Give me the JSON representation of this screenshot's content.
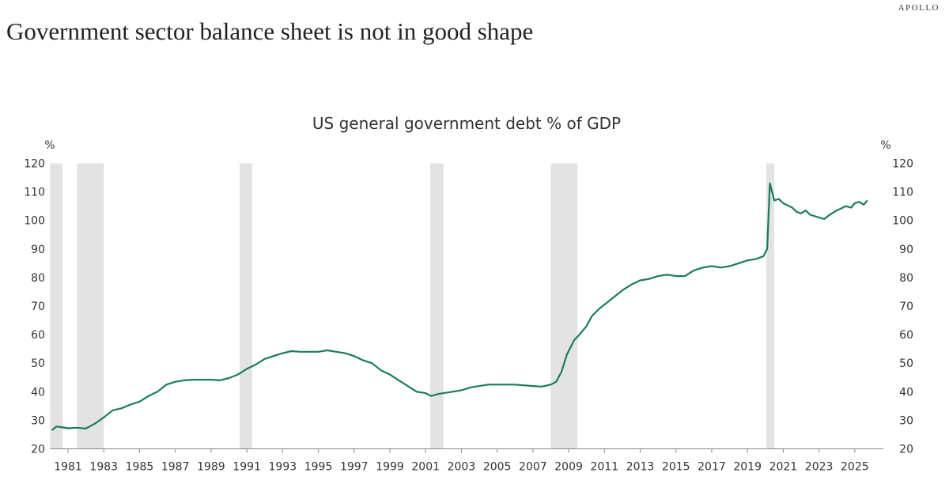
{
  "headline": "Government sector balance sheet is not in good shape",
  "brand": "APOLLO",
  "colors": {
    "line": "#1a7a60",
    "recession": "#e3e3e3",
    "axis": "#888888"
  },
  "chart_data": {
    "type": "line",
    "title": "US general government debt % of GDP",
    "ylabel_left": "%",
    "ylabel_right": "%",
    "ylim": [
      20,
      120
    ],
    "yticks": [
      20,
      30,
      40,
      50,
      60,
      70,
      80,
      90,
      100,
      110,
      120
    ],
    "xlim": [
      1980,
      2026.6
    ],
    "xticks": [
      "1981",
      "1983",
      "1985",
      "1987",
      "1989",
      "1991",
      "1993",
      "1995",
      "1997",
      "1999",
      "2001",
      "2003",
      "2005",
      "2007",
      "2009",
      "2011",
      "2013",
      "2015",
      "2017",
      "2019",
      "2021",
      "2023",
      "2025"
    ],
    "grid": false,
    "recessions": [
      [
        1980.0,
        1980.7
      ],
      [
        1981.5,
        1983.0
      ],
      [
        1990.6,
        1991.3
      ],
      [
        2001.25,
        2002.0
      ],
      [
        2008.0,
        2009.5
      ],
      [
        2020.05,
        2020.5
      ]
    ],
    "series": [
      {
        "x": [
          1980.1,
          1980.35,
          1980.7,
          1981.0,
          1981.5,
          1982.0,
          1982.5,
          1983.0,
          1983.5,
          1984.0,
          1984.5,
          1985.0,
          1985.5,
          1986.0,
          1986.5,
          1987.0,
          1987.5,
          1988.0,
          1989.0,
          1989.5,
          1990.0,
          1990.5,
          1991.0,
          1991.5,
          1992.0,
          1992.5,
          1993.0,
          1993.5,
          1994.0,
          1995.0,
          1995.5,
          1996.0,
          1996.5,
          1997.0,
          1997.5,
          1998.0,
          1998.5,
          1999.0,
          1999.5,
          2000.0,
          2000.5,
          2001.0,
          2001.3,
          2001.7,
          2002.0,
          2002.5,
          2003.0,
          2003.5,
          2004.0,
          2004.5,
          2005.0,
          2006.0,
          2007.0,
          2007.5,
          2008.0,
          2008.3,
          2008.6,
          2008.9,
          2009.3,
          2009.6,
          2010.0,
          2010.3,
          2010.7,
          2011.0,
          2011.5,
          2012.0,
          2012.5,
          2013.0,
          2013.5,
          2014.0,
          2014.5,
          2015.0,
          2015.5,
          2016.0,
          2016.5,
          2017.0,
          2017.5,
          2018.0,
          2018.5,
          2019.0,
          2019.5,
          2019.9,
          2020.1,
          2020.25,
          2020.5,
          2020.75,
          2021.0,
          2021.5,
          2021.75,
          2022.0,
          2022.25,
          2022.5,
          2023.0,
          2023.3,
          2023.6,
          2024.0,
          2024.5,
          2024.8,
          2025.0,
          2025.25,
          2025.5,
          2025.7
        ],
        "y": [
          26.5,
          27.8,
          27.5,
          27.2,
          27.4,
          27.1,
          28.8,
          31.0,
          33.5,
          34.2,
          35.5,
          36.5,
          38.5,
          40.0,
          42.5,
          43.5,
          44.0,
          44.2,
          44.2,
          44.0,
          44.8,
          46.0,
          48.0,
          49.5,
          51.5,
          52.5,
          53.5,
          54.2,
          54.0,
          54.0,
          54.5,
          54.0,
          53.5,
          52.5,
          51.0,
          50.0,
          47.5,
          46.0,
          44.0,
          42.0,
          40.0,
          39.5,
          38.5,
          39.2,
          39.5,
          40.0,
          40.5,
          41.5,
          42.0,
          42.5,
          42.5,
          42.5,
          42.0,
          41.8,
          42.5,
          43.5,
          47.0,
          53.0,
          58.0,
          60.0,
          63.0,
          66.5,
          69.0,
          70.5,
          73.0,
          75.5,
          77.5,
          79.0,
          79.5,
          80.5,
          81.0,
          80.5,
          80.5,
          82.5,
          83.5,
          84.0,
          83.5,
          84.0,
          85.0,
          86.0,
          86.5,
          87.5,
          90.0,
          113.0,
          107.0,
          107.5,
          106.0,
          104.5,
          103.0,
          102.5,
          103.5,
          102.0,
          101.0,
          100.5,
          102.0,
          103.5,
          105.0,
          104.5,
          106.0,
          106.5,
          105.5,
          107.0
        ]
      }
    ]
  }
}
